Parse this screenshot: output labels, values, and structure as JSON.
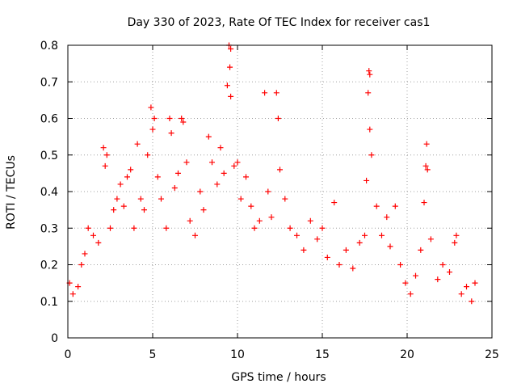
{
  "chart_data": {
    "type": "scatter",
    "title": "Day 330 of 2023, Rate Of TEC Index for receiver cas1",
    "xlabel": "GPS time / hours",
    "ylabel": "ROTI / TECUs",
    "xlim": [
      0,
      25
    ],
    "ylim": [
      0,
      0.8
    ],
    "xticks": [
      0,
      5,
      10,
      15,
      20,
      25
    ],
    "xtick_labels": [
      "0",
      "5",
      "10",
      "15",
      "20",
      "25"
    ],
    "yticks": [
      0,
      0.1,
      0.2,
      0.3,
      0.4,
      0.5,
      0.6,
      0.7,
      0.8
    ],
    "ytick_labels": [
      "0",
      "0.1",
      "0.2",
      "0.3",
      "0.4",
      "0.5",
      "0.6",
      "0.7",
      "0.8"
    ],
    "grid": true,
    "marker": "plus",
    "marker_color": "#ff0000",
    "series": [
      {
        "points": [
          [
            0.1,
            0.15
          ],
          [
            0.3,
            0.12
          ],
          [
            0.6,
            0.14
          ],
          [
            0.8,
            0.2
          ],
          [
            1.0,
            0.23
          ],
          [
            1.2,
            0.3
          ],
          [
            1.5,
            0.28
          ],
          [
            1.8,
            0.26
          ],
          [
            2.1,
            0.52
          ],
          [
            2.2,
            0.47
          ],
          [
            2.3,
            0.5
          ],
          [
            2.5,
            0.3
          ],
          [
            2.7,
            0.35
          ],
          [
            2.9,
            0.38
          ],
          [
            3.1,
            0.42
          ],
          [
            3.3,
            0.36
          ],
          [
            3.5,
            0.44
          ],
          [
            3.7,
            0.46
          ],
          [
            3.9,
            0.3
          ],
          [
            4.1,
            0.53
          ],
          [
            4.3,
            0.38
          ],
          [
            4.5,
            0.35
          ],
          [
            4.7,
            0.5
          ],
          [
            4.9,
            0.63
          ],
          [
            5.0,
            0.57
          ],
          [
            5.1,
            0.6
          ],
          [
            5.3,
            0.44
          ],
          [
            5.5,
            0.38
          ],
          [
            5.8,
            0.3
          ],
          [
            6.0,
            0.6
          ],
          [
            6.1,
            0.56
          ],
          [
            6.3,
            0.41
          ],
          [
            6.5,
            0.45
          ],
          [
            6.7,
            0.6
          ],
          [
            6.8,
            0.59
          ],
          [
            7.0,
            0.48
          ],
          [
            7.2,
            0.32
          ],
          [
            7.5,
            0.28
          ],
          [
            7.8,
            0.4
          ],
          [
            8.0,
            0.35
          ],
          [
            8.3,
            0.55
          ],
          [
            8.5,
            0.48
          ],
          [
            8.8,
            0.42
          ],
          [
            9.0,
            0.52
          ],
          [
            9.2,
            0.45
          ],
          [
            9.4,
            0.69
          ],
          [
            9.5,
            0.8
          ],
          [
            9.6,
            0.79
          ],
          [
            9.55,
            0.74
          ],
          [
            9.6,
            0.66
          ],
          [
            9.8,
            0.47
          ],
          [
            10.0,
            0.48
          ],
          [
            10.2,
            0.38
          ],
          [
            10.5,
            0.44
          ],
          [
            10.8,
            0.36
          ],
          [
            11.0,
            0.3
          ],
          [
            11.3,
            0.32
          ],
          [
            11.6,
            0.67
          ],
          [
            11.8,
            0.4
          ],
          [
            12.0,
            0.33
          ],
          [
            12.3,
            0.67
          ],
          [
            12.4,
            0.6
          ],
          [
            12.5,
            0.46
          ],
          [
            12.8,
            0.38
          ],
          [
            13.1,
            0.3
          ],
          [
            13.5,
            0.28
          ],
          [
            13.9,
            0.24
          ],
          [
            14.3,
            0.32
          ],
          [
            14.7,
            0.27
          ],
          [
            15.0,
            0.3
          ],
          [
            15.3,
            0.22
          ],
          [
            15.7,
            0.37
          ],
          [
            16.0,
            0.2
          ],
          [
            16.4,
            0.24
          ],
          [
            16.8,
            0.19
          ],
          [
            17.2,
            0.26
          ],
          [
            17.5,
            0.28
          ],
          [
            17.6,
            0.43
          ],
          [
            17.7,
            0.67
          ],
          [
            17.75,
            0.73
          ],
          [
            17.8,
            0.72
          ],
          [
            17.8,
            0.57
          ],
          [
            17.9,
            0.5
          ],
          [
            18.2,
            0.36
          ],
          [
            18.5,
            0.28
          ],
          [
            18.8,
            0.33
          ],
          [
            19.0,
            0.25
          ],
          [
            19.3,
            0.36
          ],
          [
            19.6,
            0.2
          ],
          [
            19.9,
            0.15
          ],
          [
            20.2,
            0.12
          ],
          [
            20.5,
            0.17
          ],
          [
            20.8,
            0.24
          ],
          [
            21.0,
            0.37
          ],
          [
            21.1,
            0.47
          ],
          [
            21.15,
            0.53
          ],
          [
            21.2,
            0.46
          ],
          [
            21.4,
            0.27
          ],
          [
            21.8,
            0.16
          ],
          [
            22.1,
            0.2
          ],
          [
            22.5,
            0.18
          ],
          [
            22.8,
            0.26
          ],
          [
            22.9,
            0.28
          ],
          [
            23.2,
            0.12
          ],
          [
            23.5,
            0.14
          ],
          [
            23.8,
            0.1
          ],
          [
            24.0,
            0.15
          ]
        ]
      }
    ]
  }
}
